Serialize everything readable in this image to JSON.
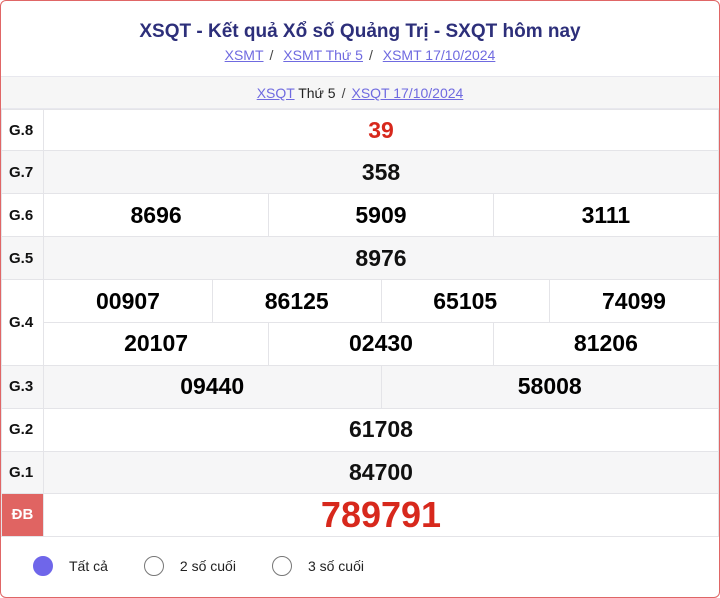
{
  "header": {
    "title": "XSQT - Kết quả Xổ số Quảng Trị - SXQT hôm nay",
    "breadcrumbs": [
      "XSMT",
      "XSMT Thứ 5",
      "XSMT 17/10/2024"
    ]
  },
  "subnav": {
    "link1": "XSQT",
    "link1_suffix": " Thứ 5",
    "link2": "XSQT 17/10/2024"
  },
  "prizes": {
    "g8": {
      "label": "G.8",
      "values": [
        "39"
      ]
    },
    "g7": {
      "label": "G.7",
      "values": [
        "358"
      ]
    },
    "g6": {
      "label": "G.6",
      "values": [
        "8696",
        "5909",
        "3111"
      ]
    },
    "g5": {
      "label": "G.5",
      "values": [
        "8976"
      ]
    },
    "g4": {
      "label": "G.4",
      "values": [
        "00907",
        "86125",
        "65105",
        "74099",
        "20107",
        "02430",
        "81206"
      ]
    },
    "g3": {
      "label": "G.3",
      "values": [
        "09440",
        "58008"
      ]
    },
    "g2": {
      "label": "G.2",
      "values": [
        "61708"
      ]
    },
    "g1": {
      "label": "G.1",
      "values": [
        "84700"
      ]
    },
    "db": {
      "label": "ĐB",
      "values": [
        "789791"
      ]
    }
  },
  "filter": {
    "options": [
      "Tất cả",
      "2 số cuối",
      "3 số cuối"
    ],
    "selected": "Tất cả"
  },
  "colors": {
    "accent": "#6f66ea",
    "special": "#d7281c",
    "border": "#e06666",
    "title": "#2d2f7a"
  }
}
